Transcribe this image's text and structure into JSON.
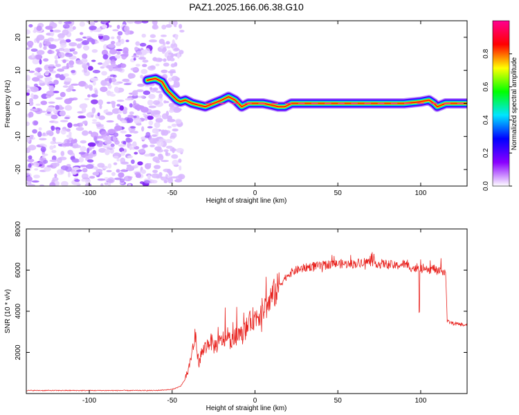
{
  "title": "PAZ1.2025.166.06.38.G10",
  "chart_data": [
    {
      "type": "heatmap",
      "xlabel": "Height of straight line (km)",
      "ylabel": "Frequency (Hz)",
      "xlim": [
        -138,
        128
      ],
      "ylim": [
        -25,
        25
      ],
      "xticks": [
        -100,
        -50,
        0,
        50,
        100
      ],
      "yticks": [
        -20,
        -10,
        0,
        10,
        20
      ],
      "colorbar": {
        "label": "Normalized spectral amplitude",
        "range": [
          0,
          1
        ],
        "ticks": [
          "0.0",
          "0.2",
          "0.4",
          "0.6",
          "0.8"
        ],
        "colors": [
          "#ffffff",
          "#8a00ff",
          "#0000ff",
          "#00e5ff",
          "#00ff00",
          "#ffff00",
          "#ff0000",
          "#ff0090"
        ]
      },
      "ridge": {
        "x": [
          -65,
          -60,
          -56,
          -53,
          -50,
          -47,
          -45,
          -42,
          -38,
          -34,
          -30,
          -25,
          -20,
          -16,
          -12,
          -8,
          -4,
          0,
          5,
          10,
          14,
          18,
          22,
          30,
          50,
          70,
          90,
          100,
          105,
          108,
          110,
          115,
          128
        ],
        "y": [
          7,
          7.5,
          6.5,
          4,
          2.5,
          1,
          0.5,
          1,
          0,
          -0.5,
          -1,
          0,
          1,
          2,
          1,
          -1,
          0,
          0,
          0,
          -0.5,
          -1,
          -1,
          0,
          0,
          0,
          0,
          0,
          0.5,
          1,
          0,
          -1,
          0,
          0
        ]
      },
      "noise_region_x": [
        -138,
        -50
      ]
    },
    {
      "type": "line",
      "xlabel": "Height of straight line (km)",
      "ylabel": "SNR (10 * v/v)",
      "xlim": [
        -138,
        128
      ],
      "ylim": [
        0,
        8000
      ],
      "xticks": [
        -100,
        -50,
        0,
        50,
        100
      ],
      "yticks": [
        2000,
        4000,
        6000,
        8000
      ],
      "color": "#e8221e",
      "series": [
        {
          "x": [
            -138,
            -110,
            -80,
            -60,
            -50,
            -45,
            -42,
            -40,
            -38,
            -36,
            -34,
            -32,
            -30,
            -27,
            -25,
            -22,
            -20,
            -18,
            -15,
            -12,
            -10,
            -8,
            -5,
            -2,
            0,
            3,
            5,
            8,
            10,
            13,
            15,
            18,
            20,
            25,
            30,
            35,
            40,
            45,
            50,
            55,
            60,
            65,
            70,
            75,
            80,
            85,
            90,
            95,
            100,
            103,
            105,
            108,
            110,
            112,
            114,
            115,
            116,
            120,
            125,
            128
          ],
          "y": [
            150,
            150,
            150,
            150,
            200,
            350,
            700,
            1200,
            2000,
            2800,
            1500,
            2000,
            2200,
            2600,
            2300,
            2400,
            2600,
            2700,
            2600,
            2700,
            2900,
            2800,
            3200,
            3600,
            3700,
            3900,
            4100,
            4300,
            4700,
            5000,
            5300,
            5600,
            5800,
            6000,
            6100,
            6200,
            6200,
            6300,
            6300,
            6300,
            6300,
            6400,
            6400,
            6300,
            6300,
            6200,
            6300,
            6100,
            6000,
            6200,
            6000,
            6100,
            5900,
            6000,
            5900,
            6000,
            3500,
            3400,
            3350,
            3300
          ]
        }
      ]
    }
  ]
}
